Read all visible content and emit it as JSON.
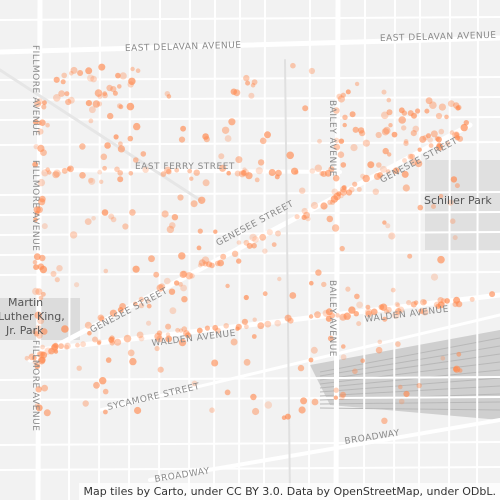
{
  "map": {
    "streets": {
      "east_delavan": "EAST DELAVAN AVENUE",
      "east_ferry": "EAST FERRY STREET",
      "genesee": "GENESEE STREET",
      "walden": "WALDEN AVENUE",
      "sycamore": "SYCAMORE STREET",
      "broadway": "BROADWAY",
      "fillmore": "FILLMORE AVENUE",
      "bailey": "BAILEY AVENUE"
    },
    "parks": {
      "schiller": "Schiller Park",
      "mlk": [
        "Martin",
        "Luther King,",
        "Jr. Park"
      ]
    },
    "attribution": "Map tiles by Carto, under CC BY 3.0. Data by OpenStreetMap, under ODbL.",
    "colors": {
      "background": "#f2f2f2",
      "major_road": "#ffffff",
      "minor_road": "#ffffff",
      "park": "#dcdcdc",
      "railyard": "#c8c8c8",
      "point": "#ff8a50"
    }
  }
}
